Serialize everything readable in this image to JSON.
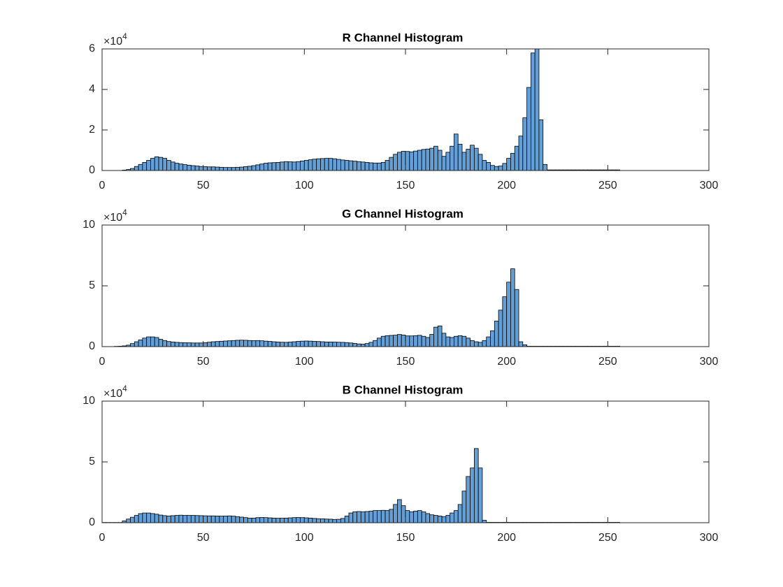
{
  "chart_data": [
    {
      "type": "histogram",
      "title": "R Channel Histogram",
      "color": "#619fd6",
      "y_multiplier": {
        "base": "×10",
        "power": "4"
      },
      "xlim": [
        0,
        300
      ],
      "xticks": [
        0,
        50,
        100,
        150,
        200,
        250,
        300
      ],
      "ylim": [
        0,
        60000
      ],
      "yticks": [
        0,
        {
          "value": 20000,
          "label": "2"
        },
        {
          "value": 40000,
          "label": "4"
        },
        {
          "value": 60000,
          "label": "6"
        }
      ],
      "bins": [
        0,
        2,
        4,
        6,
        8,
        10,
        12,
        14,
        16,
        18,
        20,
        22,
        24,
        26,
        28,
        30,
        32,
        34,
        36,
        38,
        40,
        42,
        44,
        46,
        48,
        50,
        52,
        54,
        56,
        58,
        60,
        62,
        64,
        66,
        68,
        70,
        72,
        74,
        76,
        78,
        80,
        82,
        84,
        86,
        88,
        90,
        92,
        94,
        96,
        98,
        100,
        102,
        104,
        106,
        108,
        110,
        112,
        114,
        116,
        118,
        120,
        122,
        124,
        126,
        128,
        130,
        132,
        134,
        136,
        138,
        140,
        142,
        144,
        146,
        148,
        150,
        152,
        154,
        156,
        158,
        160,
        162,
        164,
        166,
        168,
        170,
        172,
        174,
        176,
        178,
        180,
        182,
        184,
        186,
        188,
        190,
        192,
        194,
        196,
        198,
        200,
        202,
        204,
        206,
        208,
        210,
        212,
        214,
        216,
        218,
        220,
        222,
        224,
        226,
        228,
        230,
        232,
        234,
        236,
        238,
        240,
        242,
        244,
        246,
        248,
        250,
        252,
        254,
        256
      ],
      "counts": [
        0,
        0,
        0,
        0,
        0,
        200,
        500,
        1000,
        2000,
        3000,
        4000,
        5000,
        6000,
        6800,
        6500,
        6000,
        5000,
        4200,
        3600,
        3200,
        2900,
        2600,
        2400,
        2200,
        2000,
        1900,
        1800,
        1800,
        1700,
        1600,
        1500,
        1500,
        1500,
        1600,
        1700,
        1900,
        2100,
        2400,
        2800,
        3200,
        3600,
        3800,
        3900,
        4000,
        4200,
        4400,
        4300,
        4200,
        4400,
        4700,
        5000,
        5300,
        5600,
        5800,
        5900,
        6000,
        6000,
        5800,
        5500,
        5200,
        5000,
        4800,
        4600,
        4400,
        4200,
        4000,
        3800,
        3700,
        3700,
        4000,
        5000,
        6500,
        8000,
        9000,
        9500,
        9400,
        9200,
        9600,
        10000,
        10400,
        10600,
        11000,
        12000,
        10000,
        7000,
        9000,
        12000,
        18000,
        13000,
        9000,
        10500,
        12500,
        11000,
        8000,
        5000,
        4000,
        2500,
        2000,
        2200,
        3500,
        6000,
        8500,
        12000,
        17000,
        26000,
        41000,
        58000,
        60000,
        25000,
        3000,
        300,
        300,
        300,
        300,
        300,
        300,
        300,
        300,
        300,
        300,
        300,
        300,
        300,
        300,
        300,
        300,
        300,
        300
      ]
    },
    {
      "type": "histogram",
      "title": "G Channel Histogram",
      "color": "#619fd6",
      "y_multiplier": {
        "base": "×10",
        "power": "4"
      },
      "xlim": [
        0,
        300
      ],
      "xticks": [
        0,
        50,
        100,
        150,
        200,
        250,
        300
      ],
      "ylim": [
        0,
        100000
      ],
      "yticks": [
        0,
        {
          "value": 50000,
          "label": "5"
        },
        {
          "value": 100000,
          "label": "10"
        }
      ],
      "bins": [
        0,
        2,
        4,
        6,
        8,
        10,
        12,
        14,
        16,
        18,
        20,
        22,
        24,
        26,
        28,
        30,
        32,
        34,
        36,
        38,
        40,
        42,
        44,
        46,
        48,
        50,
        52,
        54,
        56,
        58,
        60,
        62,
        64,
        66,
        68,
        70,
        72,
        74,
        76,
        78,
        80,
        82,
        84,
        86,
        88,
        90,
        92,
        94,
        96,
        98,
        100,
        102,
        104,
        106,
        108,
        110,
        112,
        114,
        116,
        118,
        120,
        122,
        124,
        126,
        128,
        130,
        132,
        134,
        136,
        138,
        140,
        142,
        144,
        146,
        148,
        150,
        152,
        154,
        156,
        158,
        160,
        162,
        164,
        166,
        168,
        170,
        172,
        174,
        176,
        178,
        180,
        182,
        184,
        186,
        188,
        190,
        192,
        194,
        196,
        198,
        200,
        202,
        204,
        206,
        208,
        210,
        212,
        214,
        216,
        218,
        220,
        222,
        224,
        226,
        228,
        230,
        232,
        234,
        236,
        238,
        240,
        242,
        244,
        246,
        248,
        250,
        252,
        254,
        256
      ],
      "counts": [
        0,
        0,
        0,
        200,
        300,
        600,
        1200,
        2500,
        4000,
        5500,
        7000,
        8000,
        8000,
        7500,
        6000,
        5000,
        4200,
        3800,
        3500,
        3300,
        3200,
        3100,
        3000,
        3000,
        3000,
        3200,
        3600,
        4000,
        4200,
        4400,
        4600,
        4800,
        5000,
        5200,
        5300,
        5200,
        5000,
        4900,
        5000,
        4800,
        4500,
        4300,
        4000,
        3800,
        3600,
        3500,
        3700,
        4000,
        4300,
        4500,
        4600,
        4500,
        4300,
        4200,
        4000,
        3800,
        3800,
        3700,
        3600,
        3500,
        3300,
        3000,
        2600,
        2200,
        2000,
        2500,
        3500,
        5000,
        7000,
        8500,
        9000,
        9200,
        9400,
        10000,
        9500,
        8800,
        8800,
        9000,
        9300,
        8500,
        7500,
        10000,
        16000,
        17000,
        11000,
        8000,
        7500,
        8500,
        9000,
        8500,
        7000,
        5000,
        4000,
        3500,
        5000,
        8000,
        13000,
        21000,
        30000,
        41000,
        53000,
        64000,
        47000,
        4000,
        1500,
        300,
        300,
        300,
        300,
        300,
        300,
        300,
        300,
        300,
        300,
        300,
        300,
        300,
        300,
        300,
        300,
        300,
        300,
        300,
        300,
        300,
        300,
        300
      ]
    },
    {
      "type": "histogram",
      "title": "B Channel Histogram",
      "color": "#619fd6",
      "y_multiplier": {
        "base": "×10",
        "power": "4"
      },
      "xlim": [
        0,
        300
      ],
      "xticks": [
        0,
        50,
        100,
        150,
        200,
        250,
        300
      ],
      "ylim": [
        0,
        100000
      ],
      "yticks": [
        0,
        {
          "value": 50000,
          "label": "5"
        },
        {
          "value": 100000,
          "label": "10"
        }
      ],
      "bins": [
        0,
        2,
        4,
        6,
        8,
        10,
        12,
        14,
        16,
        18,
        20,
        22,
        24,
        26,
        28,
        30,
        32,
        34,
        36,
        38,
        40,
        42,
        44,
        46,
        48,
        50,
        52,
        54,
        56,
        58,
        60,
        62,
        64,
        66,
        68,
        70,
        72,
        74,
        76,
        78,
        80,
        82,
        84,
        86,
        88,
        90,
        92,
        94,
        96,
        98,
        100,
        102,
        104,
        106,
        108,
        110,
        112,
        114,
        116,
        118,
        120,
        122,
        124,
        126,
        128,
        130,
        132,
        134,
        136,
        138,
        140,
        142,
        144,
        146,
        148,
        150,
        152,
        154,
        156,
        158,
        160,
        162,
        164,
        166,
        168,
        170,
        172,
        174,
        176,
        178,
        180,
        182,
        184,
        186,
        188,
        190,
        192,
        194,
        196,
        198,
        200,
        202,
        204,
        206,
        208,
        210,
        212,
        214,
        216,
        218,
        220,
        222,
        224,
        226,
        228,
        230,
        232,
        234,
        236,
        238,
        240,
        242,
        244,
        246,
        248,
        250,
        252,
        254,
        256
      ],
      "counts": [
        200,
        200,
        200,
        200,
        200,
        1500,
        3000,
        4500,
        6000,
        7500,
        8000,
        8000,
        7500,
        7000,
        6300,
        5800,
        5500,
        5800,
        6000,
        6200,
        6000,
        6000,
        6000,
        5900,
        5800,
        5700,
        5600,
        5600,
        5500,
        5400,
        5500,
        5600,
        5400,
        5000,
        4600,
        4200,
        3800,
        3800,
        4200,
        4300,
        4200,
        4000,
        3800,
        3700,
        3700,
        3800,
        4000,
        4200,
        4300,
        4200,
        4000,
        3800,
        3500,
        3300,
        3200,
        3000,
        2900,
        2700,
        2800,
        3500,
        5500,
        8000,
        9000,
        9200,
        9000,
        9200,
        9500,
        10000,
        10000,
        10200,
        10000,
        11000,
        15000,
        19000,
        14000,
        10000,
        9000,
        9500,
        10000,
        9000,
        7500,
        6500,
        6000,
        5500,
        5000,
        6000,
        8000,
        10000,
        15000,
        26000,
        38000,
        45000,
        61000,
        45000,
        2000,
        300,
        300,
        300,
        300,
        300,
        300,
        300,
        300,
        300,
        300,
        300,
        300,
        300,
        300,
        300,
        300,
        300,
        300,
        300,
        300,
        300,
        300,
        300,
        300,
        300,
        300,
        300,
        300,
        300,
        300,
        300,
        300,
        300
      ]
    }
  ]
}
